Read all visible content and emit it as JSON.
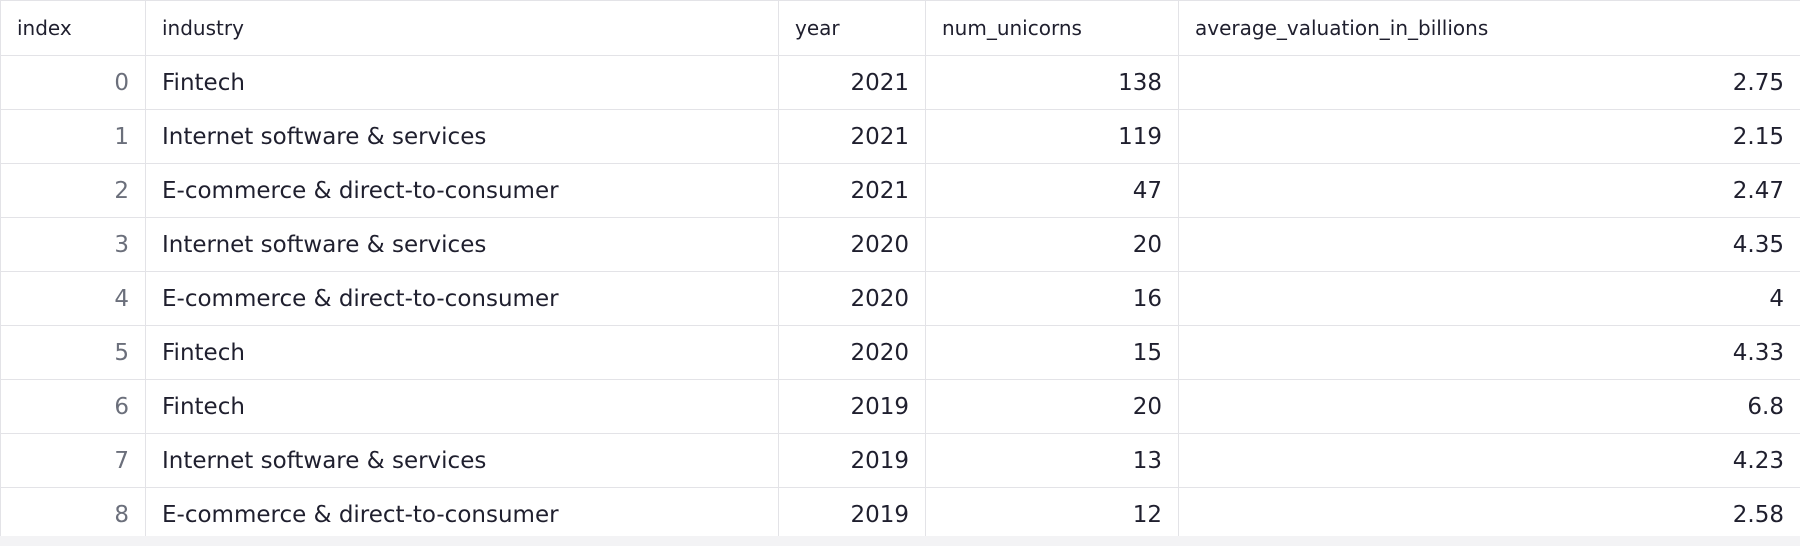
{
  "table": {
    "columns": [
      "index",
      "industry",
      "year",
      "num_unicorns",
      "average_valuation_in_billions"
    ],
    "rows": [
      {
        "index": "0",
        "industry": "Fintech",
        "year": "2021",
        "num_unicorns": "138",
        "avg": "2.75"
      },
      {
        "index": "1",
        "industry": "Internet software & services",
        "year": "2021",
        "num_unicorns": "119",
        "avg": "2.15"
      },
      {
        "index": "2",
        "industry": "E-commerce & direct-to-consumer",
        "year": "2021",
        "num_unicorns": "47",
        "avg": "2.47"
      },
      {
        "index": "3",
        "industry": "Internet software & services",
        "year": "2020",
        "num_unicorns": "20",
        "avg": "4.35"
      },
      {
        "index": "4",
        "industry": "E-commerce & direct-to-consumer",
        "year": "2020",
        "num_unicorns": "16",
        "avg": "4"
      },
      {
        "index": "5",
        "industry": "Fintech",
        "year": "2020",
        "num_unicorns": "15",
        "avg": "4.33"
      },
      {
        "index": "6",
        "industry": "Fintech",
        "year": "2019",
        "num_unicorns": "20",
        "avg": "6.8"
      },
      {
        "index": "7",
        "industry": "Internet software & services",
        "year": "2019",
        "num_unicorns": "13",
        "avg": "4.23"
      },
      {
        "index": "8",
        "industry": "E-commerce & direct-to-consumer",
        "year": "2019",
        "num_unicorns": "12",
        "avg": "2.58"
      }
    ]
  },
  "colors": {
    "border": "#e3e3e7",
    "index_text": "#6b6f7b",
    "text": "#1f1f2e"
  }
}
